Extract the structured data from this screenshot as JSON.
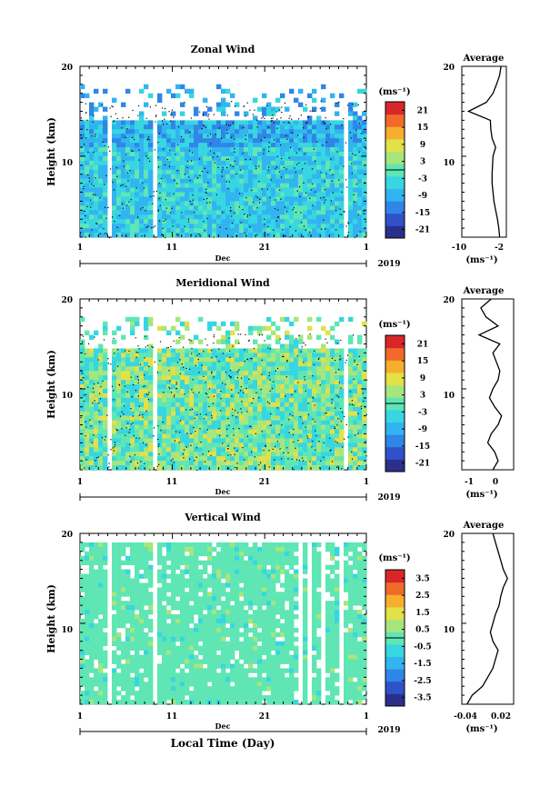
{
  "figure": {
    "xlabel": "Local Time (Day)",
    "month_label": "Dec",
    "year_label": "2019",
    "ylabel": "Height (km)",
    "unit_label": "(ms⁻¹)",
    "average_title": "Average",
    "average_xunit": "(ms⁻¹)",
    "x_ticks": [
      "1",
      "11",
      "21",
      "1"
    ],
    "y_ticks": [
      "20",
      "10"
    ]
  },
  "colormap": [
    "#2b2f8c",
    "#2f52c8",
    "#2f86e6",
    "#32b4f0",
    "#37d6e0",
    "#5fe6b4",
    "#a6e67c",
    "#e3e048",
    "#f6ae2e",
    "#f06a2a",
    "#d9262a"
  ],
  "chart_data": [
    {
      "type": "heatmap",
      "title": "Zonal Wind",
      "xlabel": "Local Time (Day)",
      "ylabel": "Height (km)",
      "x_range_days": [
        "1 Dec 2019",
        "1 Jan 2020"
      ],
      "ylim": [
        1,
        20
      ],
      "colorbar_ticks": [
        "21",
        "15",
        "9",
        "3",
        "-3",
        "-9",
        "-15",
        "-21"
      ],
      "colorbar_range": [
        -24,
        24
      ],
      "average_profile": {
        "xticks": [
          "-10",
          "-2"
        ],
        "xlim": [
          -10,
          0
        ],
        "ylim": [
          1,
          20
        ],
        "heights": [
          1,
          2,
          3,
          4,
          5,
          6,
          7,
          8,
          9,
          10,
          11,
          12,
          13,
          14,
          15,
          16,
          17,
          18,
          19,
          20
        ],
        "values": [
          -1.5,
          -1.7,
          -2.0,
          -2.4,
          -2.8,
          -3.0,
          -3.2,
          -3.2,
          -3.1,
          -3.0,
          -2.4,
          -3.2,
          -3.5,
          -3.6,
          -8.5,
          -4.5,
          -3.0,
          -2.2,
          -1.5,
          -1.2
        ]
      }
    },
    {
      "type": "heatmap",
      "title": "Meridional Wind",
      "xlabel": "Local Time (Day)",
      "ylabel": "Height (km)",
      "x_range_days": [
        "1 Dec 2019",
        "1 Jan 2020"
      ],
      "ylim": [
        1,
        20
      ],
      "colorbar_ticks": [
        "21",
        "15",
        "9",
        "3",
        "-3",
        "-9",
        "-15",
        "-21"
      ],
      "colorbar_range": [
        -24,
        24
      ],
      "average_profile": {
        "xticks": [
          "-1",
          "0"
        ],
        "xlim": [
          -2,
          1
        ],
        "ylim": [
          1,
          20
        ],
        "heights": [
          1,
          2,
          3,
          4,
          5,
          6,
          7,
          8,
          9,
          10,
          11,
          12,
          13,
          14,
          15,
          16,
          17,
          18,
          19,
          20
        ],
        "values": [
          -0.2,
          0.1,
          -0.1,
          -0.5,
          -0.3,
          0.1,
          0.3,
          -0.1,
          -0.4,
          -0.2,
          0.1,
          0.2,
          0.0,
          -0.2,
          0.2,
          -1.0,
          0.1,
          -0.6,
          -0.9,
          -0.3
        ]
      }
    },
    {
      "type": "heatmap",
      "title": "Vertical Wind",
      "xlabel": "Local Time (Day)",
      "ylabel": "Height (km)",
      "x_range_days": [
        "1 Dec 2019",
        "1 Jan 2020"
      ],
      "ylim": [
        1,
        20
      ],
      "colorbar_ticks": [
        "3.5",
        "2.5",
        "1.5",
        "0.5",
        "-0.5",
        "-1.5",
        "-2.5",
        "-3.5"
      ],
      "colorbar_range": [
        -4,
        4
      ],
      "average_profile": {
        "xticks": [
          "-0.04",
          "0.02"
        ],
        "xlim": [
          -0.06,
          0.04
        ],
        "ylim": [
          1,
          20
        ],
        "heights": [
          1,
          2,
          3,
          4,
          5,
          6,
          7,
          8,
          9,
          10,
          11,
          12,
          13,
          14,
          15,
          16,
          17,
          18,
          19,
          20
        ],
        "values": [
          -0.05,
          -0.04,
          -0.02,
          -0.01,
          0.0,
          0.005,
          0.01,
          0.0,
          -0.005,
          0.0,
          0.005,
          0.012,
          0.015,
          0.02,
          0.028,
          0.02,
          0.015,
          0.01,
          0.005,
          0.0
        ]
      }
    }
  ]
}
